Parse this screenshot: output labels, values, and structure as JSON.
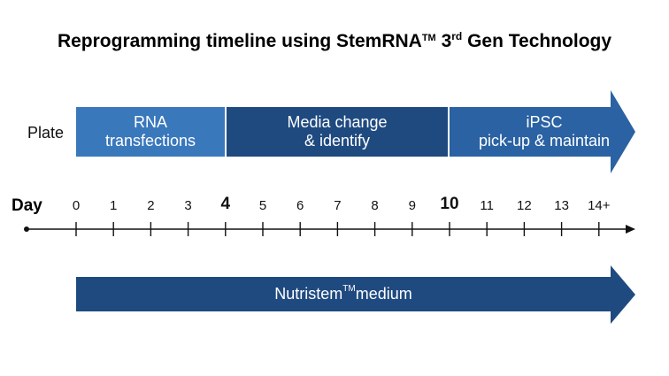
{
  "title": {
    "prefix": "Reprogramming timeline using StemRNA",
    "tm": "TM",
    "number": "3",
    "ordinal": "rd",
    "suffix": " Gen Technology"
  },
  "row_label": "Plate",
  "phases": [
    {
      "line1": "RNA",
      "line2": "transfections"
    },
    {
      "line1": "Media change",
      "line2": "& identify"
    },
    {
      "line1": "iPSC",
      "line2": "pick-up & maintain"
    }
  ],
  "axis": {
    "label": "Day",
    "ticks": [
      "0",
      "1",
      "2",
      "3",
      "4",
      "5",
      "6",
      "7",
      "8",
      "9",
      "10",
      "11",
      "12",
      "13",
      "14+"
    ],
    "emphasized": [
      "4",
      "10"
    ]
  },
  "medium": {
    "name": "Nutristem",
    "tm": "TM",
    "suffix": " medium"
  },
  "colors": {
    "phase1": "#3a78bc",
    "phase2": "#1f4a80",
    "phase3": "#2a62a3",
    "medium": "#1f4a80"
  }
}
